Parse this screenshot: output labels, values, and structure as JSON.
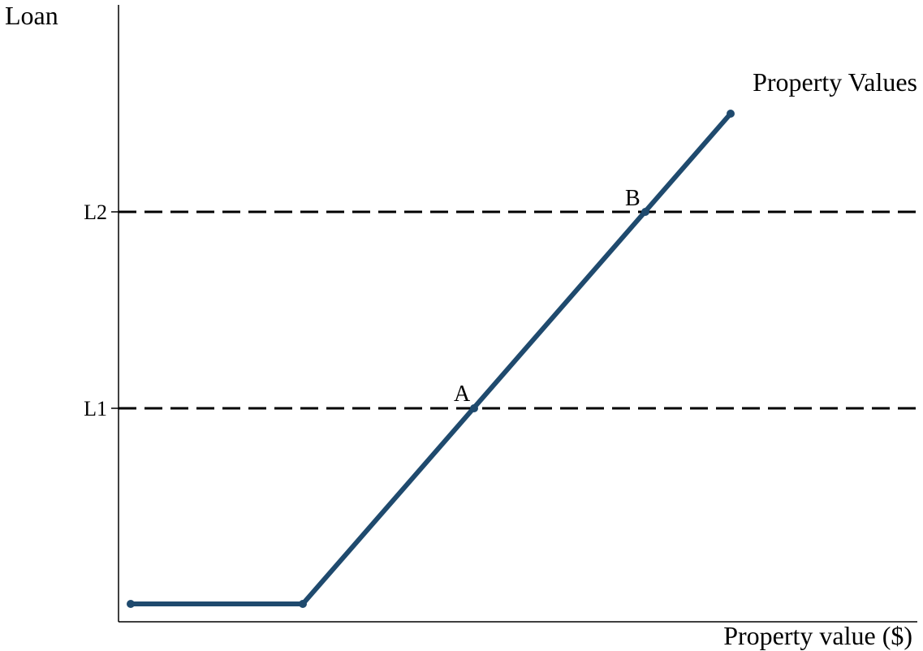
{
  "diagram": {
    "y_axis_label": "Loan",
    "x_axis_label": "Property value ($)",
    "curve_label": "Property Values",
    "levels": [
      {
        "label": "L1"
      },
      {
        "label": "L2"
      }
    ],
    "points": [
      {
        "label": "A"
      },
      {
        "label": "B"
      }
    ],
    "colors": {
      "curve": "#1f4a6e",
      "axis": "#000000",
      "dashed": "#000000"
    }
  }
}
